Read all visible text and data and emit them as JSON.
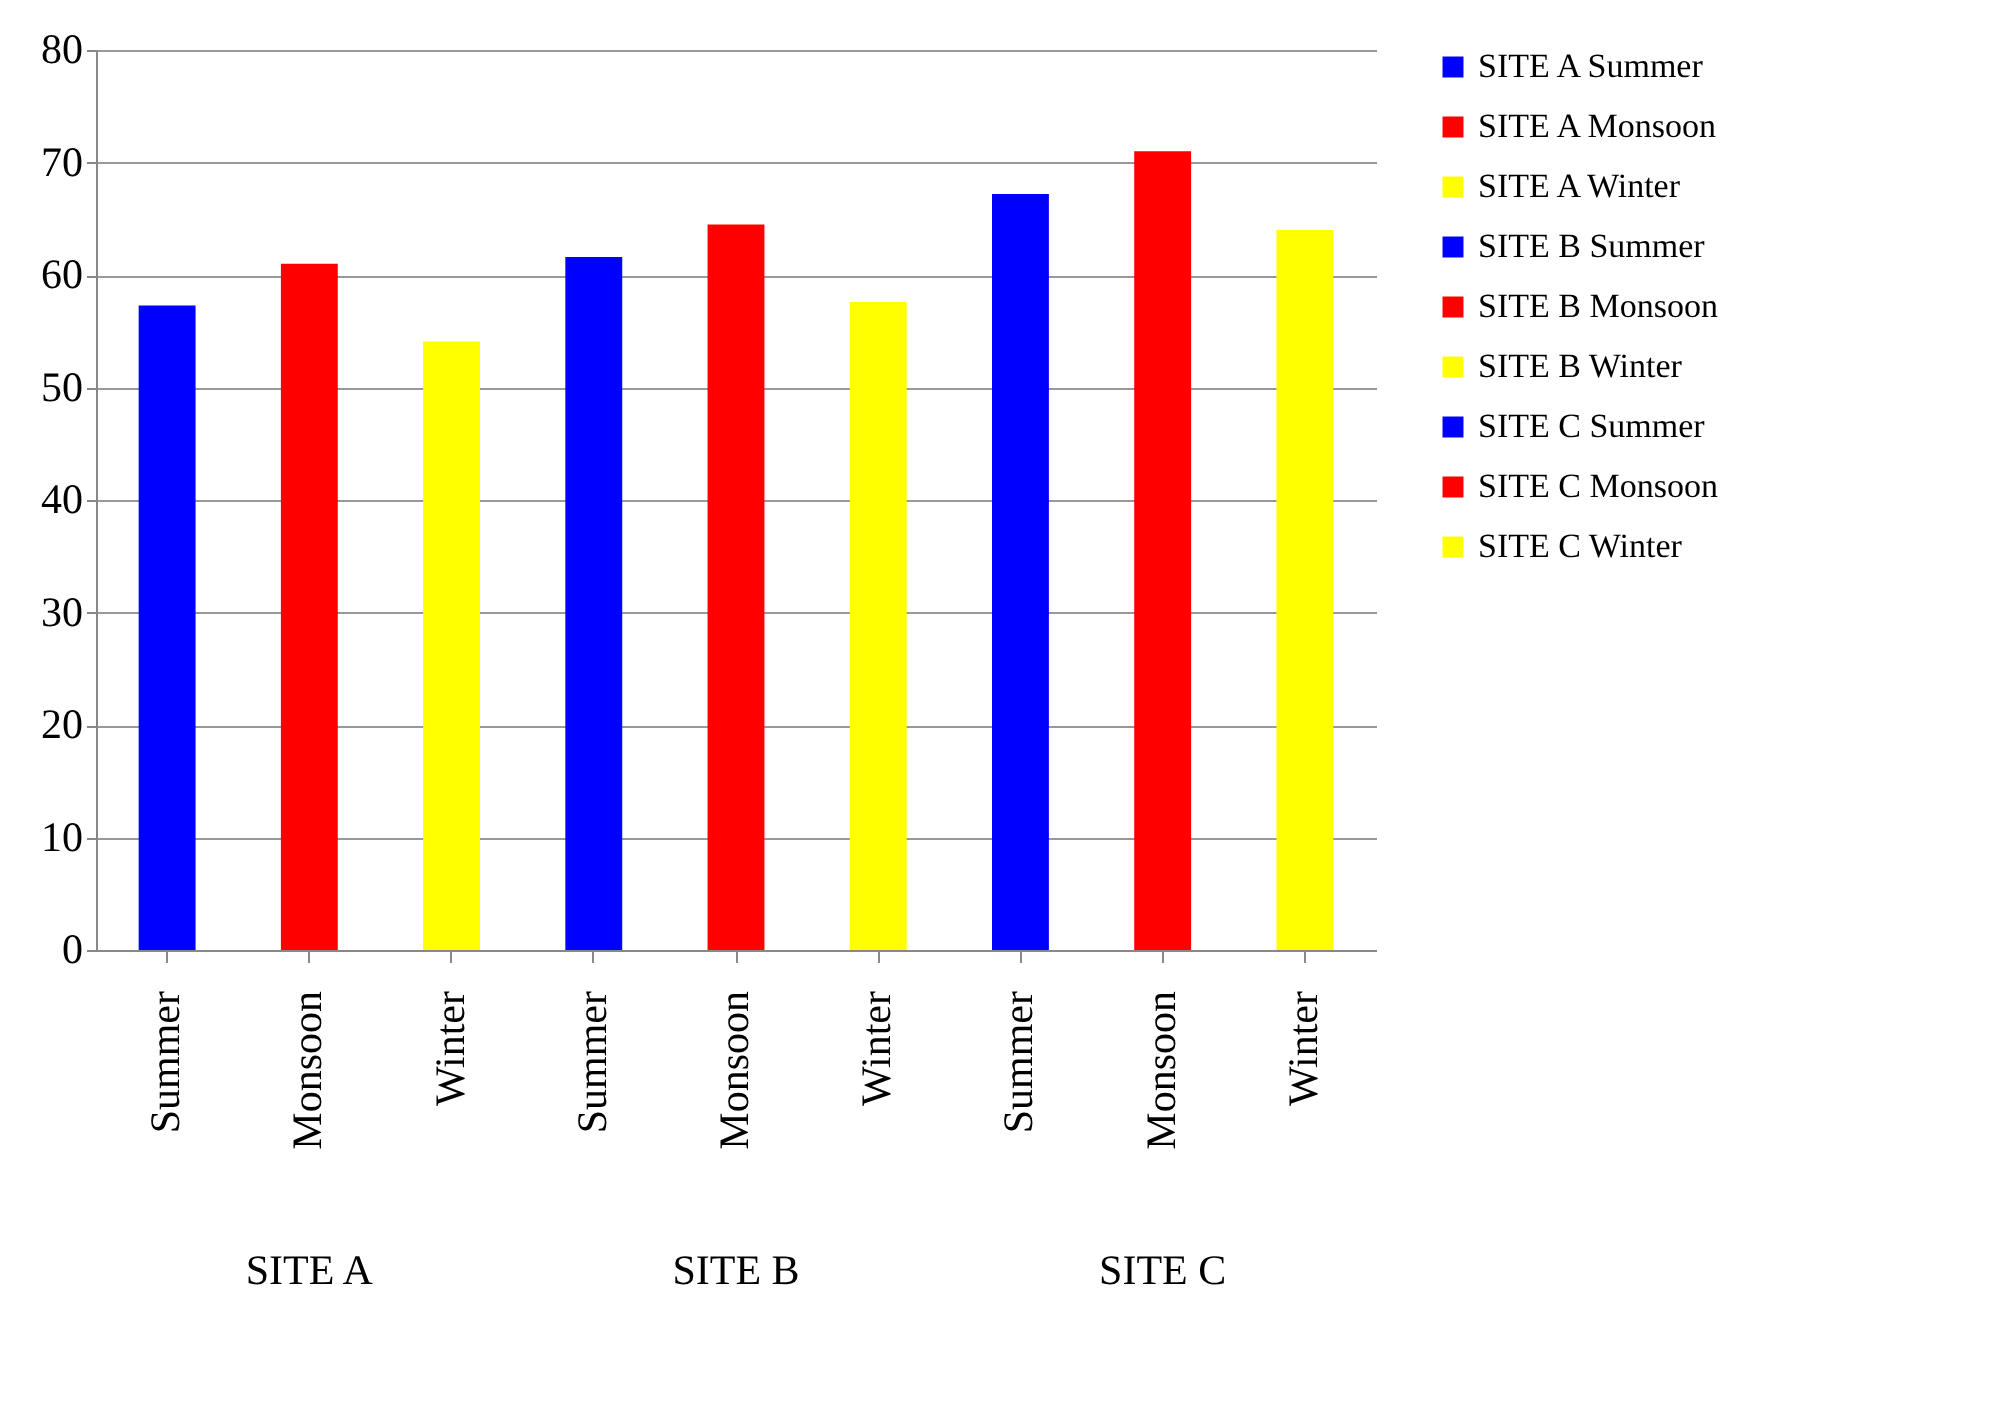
{
  "chart_data": {
    "type": "bar",
    "categories": [
      "Summer",
      "Monsoon",
      "Winter",
      "Summer",
      "Monsoon",
      "Winter",
      "Summer",
      "Monsoon",
      "Winter"
    ],
    "series": [
      {
        "name": "SITE A  Summer",
        "color": "#0000ff",
        "values": [
          57.3,
          null,
          null,
          null,
          null,
          null,
          null,
          null,
          null
        ]
      },
      {
        "name": "SITE A  Monsoon",
        "color": "#ff0000",
        "values": [
          null,
          61.0,
          null,
          null,
          null,
          null,
          null,
          null,
          null
        ]
      },
      {
        "name": "SITE A  Winter",
        "color": "#ffff00",
        "values": [
          null,
          null,
          54.1,
          null,
          null,
          null,
          null,
          null,
          null
        ]
      },
      {
        "name": "SITE B  Summer",
        "color": "#0000ff",
        "values": [
          null,
          null,
          null,
          61.6,
          null,
          null,
          null,
          null,
          null
        ]
      },
      {
        "name": "SITE B  Monsoon",
        "color": "#ff0000",
        "values": [
          null,
          null,
          null,
          null,
          64.5,
          null,
          null,
          null,
          null
        ]
      },
      {
        "name": "SITE B  Winter",
        "color": "#ffff00",
        "values": [
          null,
          null,
          null,
          null,
          null,
          57.6,
          null,
          null,
          null
        ]
      },
      {
        "name": "SITE C  Summer",
        "color": "#0000ff",
        "values": [
          null,
          null,
          null,
          null,
          null,
          null,
          67.2,
          null,
          null
        ]
      },
      {
        "name": "SITE C  Monsoon",
        "color": "#ff0000",
        "values": [
          null,
          null,
          null,
          null,
          null,
          null,
          null,
          71.0,
          null
        ]
      },
      {
        "name": "SITE C  Winter",
        "color": "#ffff00",
        "values": [
          null,
          null,
          null,
          null,
          null,
          null,
          null,
          null,
          64.0
        ]
      }
    ],
    "ylim": [
      0,
      80
    ],
    "yticks": [
      0,
      10,
      20,
      30,
      40,
      50,
      60,
      70,
      80
    ],
    "grid": "y",
    "legend": "right",
    "annotations": [
      "SITE A",
      "SITE B",
      "SITE C"
    ]
  }
}
